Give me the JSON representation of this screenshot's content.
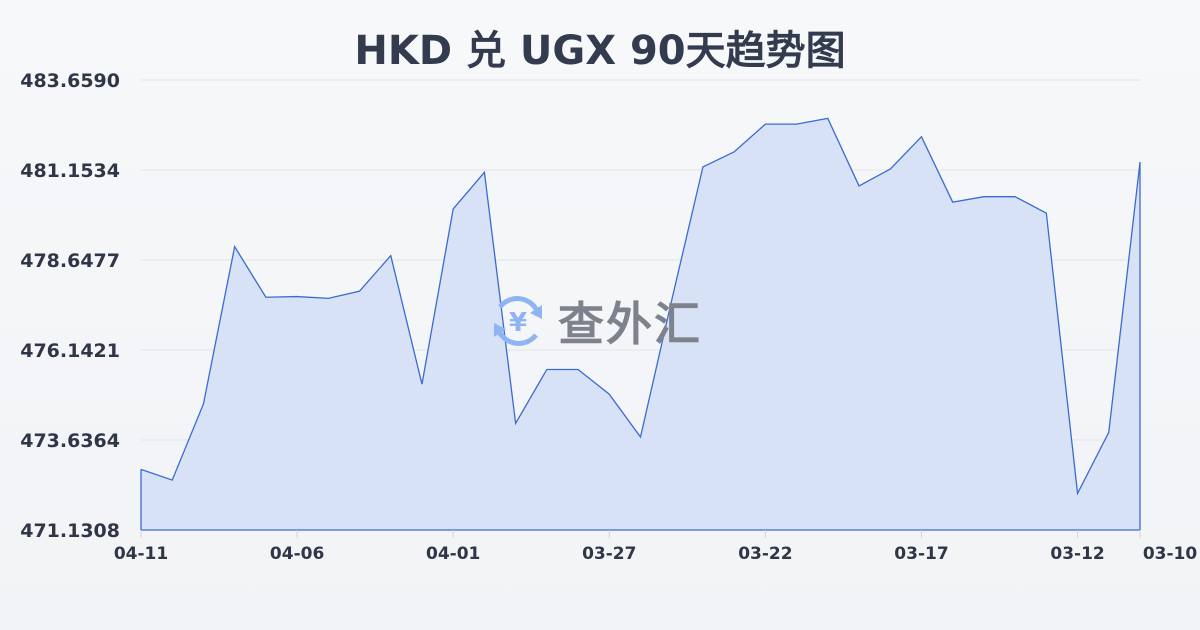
{
  "chart_data": {
    "type": "area",
    "title": "HKD 兑 UGX 90天趋势图",
    "xlabel": "",
    "ylabel": "",
    "x": [
      "04-11",
      "04-10",
      "04-09",
      "04-08",
      "04-07",
      "04-06",
      "04-05",
      "04-04",
      "04-03",
      "04-02",
      "04-01",
      "03-31",
      "03-30",
      "03-29",
      "03-28",
      "03-27",
      "03-26",
      "03-25",
      "03-24",
      "03-23",
      "03-22",
      "03-21",
      "03-20",
      "03-19",
      "03-18",
      "03-17",
      "03-16",
      "03-15",
      "03-14",
      "03-13",
      "03-12",
      "03-11",
      "03-10"
    ],
    "x_tick_labels": [
      "04-11",
      "04-06",
      "04-01",
      "03-27",
      "03-22",
      "03-17",
      "03-12",
      "03-10"
    ],
    "y_tick_labels": [
      "483.6590",
      "481.1534",
      "478.6477",
      "476.1421",
      "473.6364",
      "471.1308"
    ],
    "ylim": [
      471.1308,
      483.659
    ],
    "series": [
      {
        "values": [
          472.82,
          472.52,
          474.64,
          479.02,
          477.61,
          477.63,
          477.58,
          477.78,
          478.77,
          475.19,
          480.07,
          481.09,
          474.1,
          475.6,
          475.6,
          474.91,
          473.72,
          477.53,
          481.24,
          481.66,
          482.43,
          482.43,
          482.59,
          480.71,
          481.18,
          482.08,
          480.26,
          480.41,
          480.41,
          479.95,
          472.15,
          473.85,
          481.37
        ]
      }
    ],
    "grid": true,
    "legend": "none",
    "colors": {
      "line": "#3a6bd0",
      "fill": "#d6e0f5",
      "grid": "#e2e5ea"
    }
  },
  "watermark": {
    "text": "查外汇",
    "icon": "yen-exchange-icon"
  }
}
